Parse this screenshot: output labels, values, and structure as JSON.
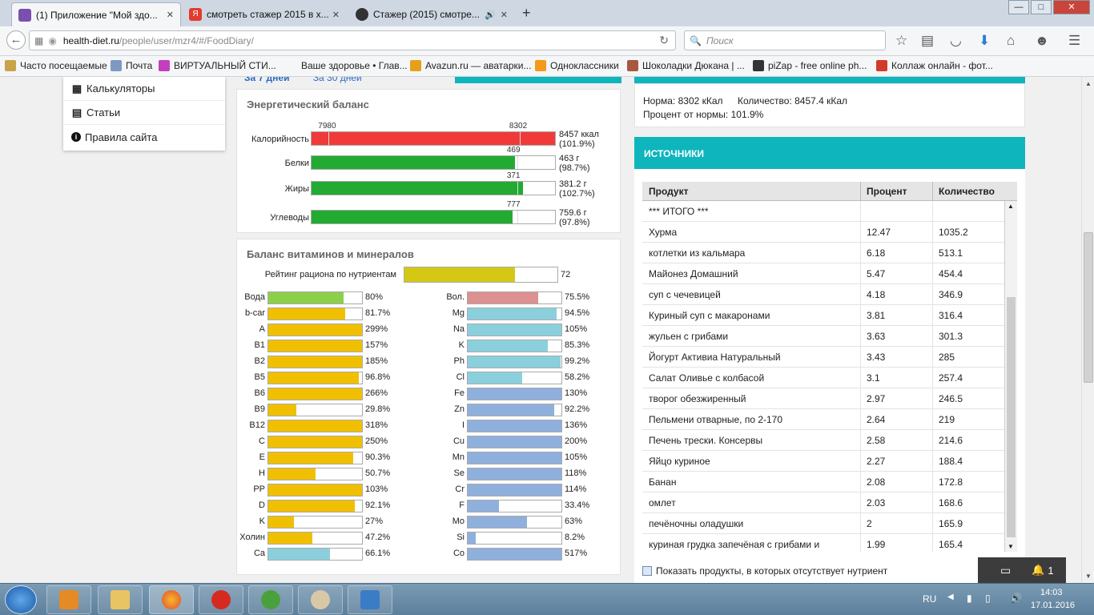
{
  "browser": {
    "tabs": [
      {
        "label": "(1) Приложение \"Мой здо...",
        "favicon": "grid-app-icon",
        "color": "#7a4fb0",
        "active": true
      },
      {
        "label": "смотреть стажер 2015 в х...",
        "favicon": "yandex-icon",
        "color": "#e33b2e",
        "active": false
      },
      {
        "label": "Стажер (2015) смотре...",
        "favicon": "face-icon",
        "color": "#333",
        "active": false
      }
    ],
    "new_tab": "+",
    "window_controls": [
      "—",
      "□",
      "✕"
    ],
    "url": "health-diet.ru/people/user/mzr4/#/FoodDiary/",
    "url_domain": "health-diet.ru",
    "url_path": "/people/user/mzr4/#/FoodDiary/",
    "search_placeholder": "Поиск",
    "bookmarks": [
      {
        "label": "Часто посещаемые",
        "icon": "bookmark-folder-icon"
      },
      {
        "label": "Почта",
        "icon": "mail-icon"
      },
      {
        "label": "ВИРТУАЛЬНЫЙ СТИ...",
        "icon": "mf-icon"
      },
      {
        "label": "Ваше здоровье • Глав...",
        "icon": "page-icon"
      },
      {
        "label": "Avazun.ru — аватарки...",
        "icon": "star-icon"
      },
      {
        "label": "Одноклассники",
        "icon": "ok-icon"
      },
      {
        "label": "Шоколадки Дюкана | ...",
        "icon": "choco-icon"
      },
      {
        "label": "piZap - free online ph...",
        "icon": "pizap-icon"
      },
      {
        "label": "Коллаж онлайн - фот...",
        "icon": "collage-icon"
      }
    ]
  },
  "menu": {
    "items": [
      {
        "label": "Калькуляторы",
        "icon": "calculator-icon"
      },
      {
        "label": "Статьи",
        "icon": "document-icon"
      },
      {
        "label": "Правила сайта",
        "icon": "info-icon"
      }
    ]
  },
  "period": {
    "week": "За 7 дней",
    "month": "За 30 дней"
  },
  "energy": {
    "title": "Энергетический баланс",
    "rows": [
      {
        "label": "Калорийность",
        "norm": "8302",
        "norm_frac": 0.855,
        "extra_norm": "7980",
        "extra_frac": 0.07,
        "fill_frac": 1.0,
        "color": "#f03a3a",
        "value": "8457 ккал",
        "pct": "(101.9%)"
      },
      {
        "label": "Белки",
        "norm": "469",
        "norm_frac": 0.845,
        "fill_frac": 0.835,
        "color": "#22aa33",
        "value": "463 г",
        "pct": "(98.7%)"
      },
      {
        "label": "Жиры",
        "norm": "371",
        "norm_frac": 0.845,
        "fill_frac": 0.868,
        "color": "#22aa33",
        "value": "381.2 г",
        "pct": "(102.7%)"
      },
      {
        "label": "Углеводы",
        "norm": "777",
        "norm_frac": 0.845,
        "fill_frac": 0.827,
        "color": "#22aa33",
        "value": "759.6 г",
        "pct": "(97.8%)"
      }
    ]
  },
  "vitamins": {
    "title": "Баланс витаминов и минералов",
    "rating_label": "Рейтинг рациона по нутриентам",
    "rating_value": "72",
    "rating_frac": 0.72,
    "left": [
      {
        "label": "Вода",
        "pct": "80%",
        "frac": 0.8,
        "color": "#8ccf4b"
      },
      {
        "label": "b-car",
        "pct": "81.7%",
        "frac": 0.817,
        "color": "#f0c000"
      },
      {
        "label": "A",
        "pct": "299%",
        "frac": 1,
        "color": "#f0c000"
      },
      {
        "label": "B1",
        "pct": "157%",
        "frac": 1,
        "color": "#f0c000"
      },
      {
        "label": "B2",
        "pct": "185%",
        "frac": 1,
        "color": "#f0c000"
      },
      {
        "label": "B5",
        "pct": "96.8%",
        "frac": 0.968,
        "color": "#f0c000"
      },
      {
        "label": "B6",
        "pct": "266%",
        "frac": 1,
        "color": "#f0c000"
      },
      {
        "label": "B9",
        "pct": "29.8%",
        "frac": 0.298,
        "color": "#f0c000"
      },
      {
        "label": "B12",
        "pct": "318%",
        "frac": 1,
        "color": "#f0c000"
      },
      {
        "label": "C",
        "pct": "250%",
        "frac": 1,
        "color": "#f0c000"
      },
      {
        "label": "E",
        "pct": "90.3%",
        "frac": 0.903,
        "color": "#f0c000"
      },
      {
        "label": "H",
        "pct": "50.7%",
        "frac": 0.507,
        "color": "#f0c000"
      },
      {
        "label": "PP",
        "pct": "103%",
        "frac": 1,
        "color": "#f0c000"
      },
      {
        "label": "D",
        "pct": "92.1%",
        "frac": 0.921,
        "color": "#f0c000"
      },
      {
        "label": "K",
        "pct": "27%",
        "frac": 0.27,
        "color": "#f0c000"
      },
      {
        "label": "Холин",
        "pct": "47.2%",
        "frac": 0.472,
        "color": "#f0c000"
      },
      {
        "label": "Ca",
        "pct": "66.1%",
        "frac": 0.661,
        "color": "#8ccfdc"
      }
    ],
    "right": [
      {
        "label": "Вол.",
        "pct": "75.5%",
        "frac": 0.755,
        "color": "#dc9090"
      },
      {
        "label": "Mg",
        "pct": "94.5%",
        "frac": 0.945,
        "color": "#8ccfdc"
      },
      {
        "label": "Na",
        "pct": "105%",
        "frac": 1,
        "color": "#8ccfdc"
      },
      {
        "label": "K",
        "pct": "85.3%",
        "frac": 0.853,
        "color": "#8ccfdc"
      },
      {
        "label": "Ph",
        "pct": "99.2%",
        "frac": 0.992,
        "color": "#8ccfdc"
      },
      {
        "label": "Cl",
        "pct": "58.2%",
        "frac": 0.582,
        "color": "#8ccfdc"
      },
      {
        "label": "Fe",
        "pct": "130%",
        "frac": 1,
        "color": "#8fb0dc"
      },
      {
        "label": "Zn",
        "pct": "92.2%",
        "frac": 0.922,
        "color": "#8fb0dc"
      },
      {
        "label": "I",
        "pct": "136%",
        "frac": 1,
        "color": "#8fb0dc"
      },
      {
        "label": "Cu",
        "pct": "200%",
        "frac": 1,
        "color": "#8fb0dc"
      },
      {
        "label": "Mn",
        "pct": "105%",
        "frac": 1,
        "color": "#8fb0dc"
      },
      {
        "label": "Se",
        "pct": "118%",
        "frac": 1,
        "color": "#8fb0dc"
      },
      {
        "label": "Cr",
        "pct": "114%",
        "frac": 1,
        "color": "#8fb0dc"
      },
      {
        "label": "F",
        "pct": "33.4%",
        "frac": 0.334,
        "color": "#8fb0dc"
      },
      {
        "label": "Mo",
        "pct": "63%",
        "frac": 0.63,
        "color": "#8fb0dc"
      },
      {
        "label": "Si",
        "pct": "8.2%",
        "frac": 0.082,
        "color": "#8fb0dc"
      },
      {
        "label": "Co",
        "pct": "517%",
        "frac": 1,
        "color": "#8fb0dc"
      }
    ]
  },
  "norm_info": {
    "norma": "Норма: 8302 кКал",
    "quantity": "Количество: 8457.4 кКал",
    "percent": "Процент от нормы: 101.9%"
  },
  "sources": {
    "title": "ИСТОЧНИКИ",
    "columns": [
      "Продукт",
      "Процент",
      "Количество"
    ],
    "rows": [
      [
        "*** ИТОГО ***",
        "",
        ""
      ],
      [
        "Хурма",
        "12.47",
        "1035.2"
      ],
      [
        "котлетки из кальмара",
        "6.18",
        "513.1"
      ],
      [
        "Майонез Домашний",
        "5.47",
        "454.4"
      ],
      [
        "суп с чечевицей",
        "4.18",
        "346.9"
      ],
      [
        "Куриный суп с макаронами",
        "3.81",
        "316.4"
      ],
      [
        "жульен с грибами",
        "3.63",
        "301.3"
      ],
      [
        "Йогурт Активиа Натуральный",
        "3.43",
        "285"
      ],
      [
        "Салат Оливье с колбасой",
        "3.1",
        "257.4"
      ],
      [
        "творог обезжиренный",
        "2.97",
        "246.5"
      ],
      [
        "Пельмени отварные, по 2-170",
        "2.64",
        "219"
      ],
      [
        "Печень трески. Консервы",
        "2.58",
        "214.6"
      ],
      [
        "Яйцо куриное",
        "2.27",
        "188.4"
      ],
      [
        "Банан",
        "2.08",
        "172.8"
      ],
      [
        "омлет",
        "2.03",
        "168.6"
      ],
      [
        "печёночны оладушки",
        "2",
        "165.9"
      ],
      [
        "куриная грудка запечёная с грибами и цветной капустой",
        "1.99",
        "165.4"
      ]
    ],
    "show_missing": "Показать продукты, в которых отсутствует нутриент"
  },
  "notification": {
    "count": "1"
  },
  "taskbar": {
    "lang": "RU",
    "time": "14:03",
    "date": "17.01.2016",
    "apps": [
      "windows-media-player-icon",
      "explorer-icon",
      "firefox-icon",
      "opera-icon",
      "utorrent-icon",
      "paint-icon",
      "photo-viewer-icon"
    ]
  }
}
